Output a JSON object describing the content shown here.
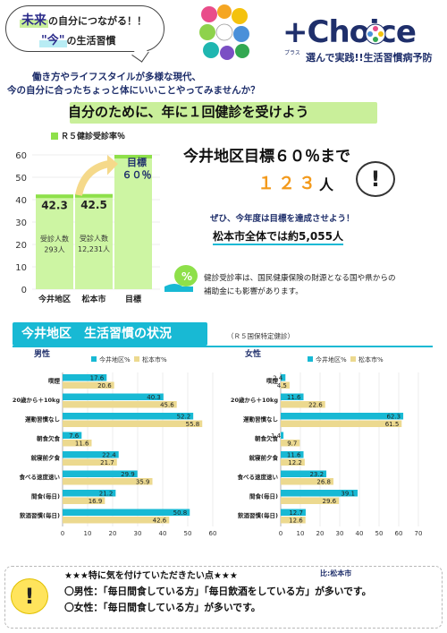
{
  "header": {
    "bubble_future": "未来",
    "bubble_line1_rest": "の自分につながる！！",
    "bubble_now": "\"今\"",
    "bubble_line2_rest": "の生活習慣",
    "question_line1": "働き方やライフスタイルが多様な現代、",
    "question_line2": "今の自分に合ったちょっと体にいいことやってみませんか？",
    "logo_main": "+Choice",
    "logo_sub_small": "プラス",
    "logo_tagline": "選んで実践!!生活習慣病予防",
    "colors": {
      "accent_cyan": "#18b9d4",
      "accent_green": "#8ee04a",
      "navy": "#1f2f6b",
      "yellow": "#f5d98a",
      "orange": "#f39a1c"
    }
  },
  "headline": "自分のために、年に１回健診を受けよう",
  "target": {
    "title": "今井地区目標６０％まで",
    "count": "１２３",
    "count_unit": "人",
    "exclaim": "!",
    "achieve": "ぜひ、今年度は目標を達成させよう！",
    "city_total": "松本市全体では約5,055人",
    "note_line1": "健診受診率は、国民健康保険の財源となる国や県からの",
    "note_line2": "補助金にも影響があります。"
  },
  "chart_data": [
    {
      "type": "bar",
      "legend": "Ｒ５健診受診率％",
      "categories": [
        "今井地区",
        "松本市",
        "目標"
      ],
      "values": [
        42.3,
        42.5,
        60
      ],
      "value_labels": [
        "42.3",
        "42.5",
        ""
      ],
      "counts": [
        "受診人数\n293人",
        "受診人数\n12,231人",
        ""
      ],
      "target_label": "目標\n６０％",
      "ylim": [
        0,
        60
      ],
      "yticks": [
        0,
        10,
        20,
        30,
        40,
        50,
        60
      ],
      "colors": {
        "bar_fill": "#cdf5a3",
        "bar_top": "#8ee04a"
      }
    },
    {
      "type": "bar",
      "orientation": "horizontal",
      "panel_label": "男性",
      "categories": [
        "喫煙",
        "20歳から＋10kg",
        "運動習慣なし",
        "朝食欠食",
        "就寝前夕食",
        "食べる速度速い",
        "間食(毎日)",
        "飲酒習慣(毎日)"
      ],
      "series": [
        {
          "name": "今井地区%",
          "values": [
            17.6,
            40.3,
            52.2,
            7.6,
            22.4,
            29.9,
            21.2,
            50.8
          ],
          "color": "#18b9d4"
        },
        {
          "name": "松本市%",
          "values": [
            20.6,
            45.6,
            55.8,
            11.6,
            21.7,
            35.9,
            16.9,
            42.6
          ],
          "color": "#ecd98f"
        }
      ],
      "xlim": [
        0,
        60
      ],
      "xticks": [
        0,
        10,
        20,
        30,
        40,
        50,
        60
      ]
    },
    {
      "type": "bar",
      "orientation": "horizontal",
      "panel_label": "女性",
      "categories": [
        "喫煙",
        "20歳から＋10kg",
        "運動習慣なし",
        "朝食欠食",
        "就寝前夕食",
        "食べる速度速い",
        "間食(毎日)",
        "飲酒習慣(毎日)"
      ],
      "series": [
        {
          "name": "今井地区%",
          "values": [
            2.4,
            11.6,
            62.3,
            1.4,
            11.6,
            23.2,
            39.1,
            12.7
          ],
          "color": "#18b9d4"
        },
        {
          "name": "松本市%",
          "values": [
            4.5,
            22.6,
            61.5,
            9.7,
            12.2,
            26.8,
            29.6,
            12.6
          ],
          "color": "#ecd98f"
        }
      ],
      "xlim": [
        0,
        70
      ],
      "xticks": [
        0,
        10,
        20,
        30,
        40,
        50,
        60,
        70
      ]
    }
  ],
  "section": {
    "title": "今井地区　生活習慣の状況",
    "source": "（Ｒ５国保特定健診）"
  },
  "bottom": {
    "title": "★★★特に気を付けていただきたい点★★★",
    "compare": "比:松本市",
    "male_line": "〇男性：「毎日間食している方」「毎日飲酒をしている方」が多いです。",
    "female_line": "〇女性：「毎日間食している方」が多いです。",
    "exclaim": "!"
  }
}
